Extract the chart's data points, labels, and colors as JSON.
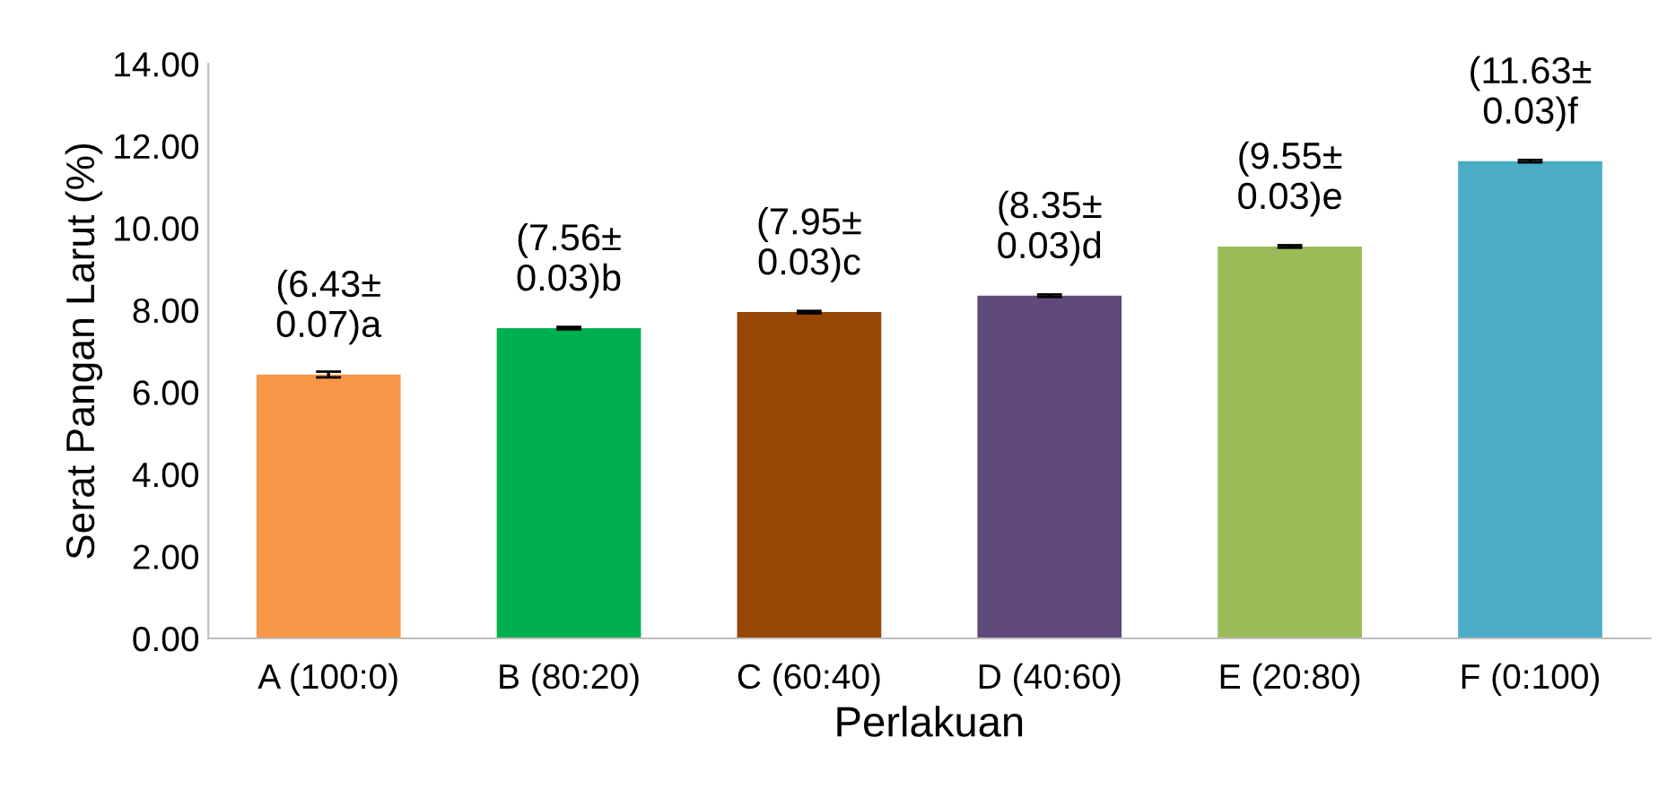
{
  "chart_data": {
    "type": "bar",
    "xlabel": "Perlakuan",
    "ylabel": "Serat Pangan Larut (%)",
    "categories": [
      "A (100:0)",
      "B (80:20)",
      "C (60:40)",
      "D (40:60)",
      "E (20:80)",
      "F (0:100)"
    ],
    "values": [
      6.43,
      7.56,
      7.95,
      8.35,
      9.55,
      11.63
    ],
    "errors": [
      0.07,
      0.03,
      0.03,
      0.03,
      0.03,
      0.03
    ],
    "colors": [
      "#f79646",
      "#00b050",
      "#974706",
      "#604a7b",
      "#9bbb59",
      "#4bacc6"
    ],
    "value_labels": [
      "(6.43±\n0.07)a",
      "(7.56±\n0.03)b",
      "(7.95±\n0.03)c",
      "(8.35±\n0.03)d",
      "(9.55±\n0.03)e",
      "(11.63±\n0.03)f"
    ],
    "ylim": [
      0,
      14
    ],
    "yticks": [
      {
        "value": 0,
        "label": "0.00"
      },
      {
        "value": 2,
        "label": "2.00"
      },
      {
        "value": 4,
        "label": "4.00"
      },
      {
        "value": 6,
        "label": "6.00"
      },
      {
        "value": 8,
        "label": "8.00"
      },
      {
        "value": 10,
        "label": "10.00"
      },
      {
        "value": 12,
        "label": "12.00"
      },
      {
        "value": 14,
        "label": "14.00"
      }
    ],
    "grid": false
  }
}
